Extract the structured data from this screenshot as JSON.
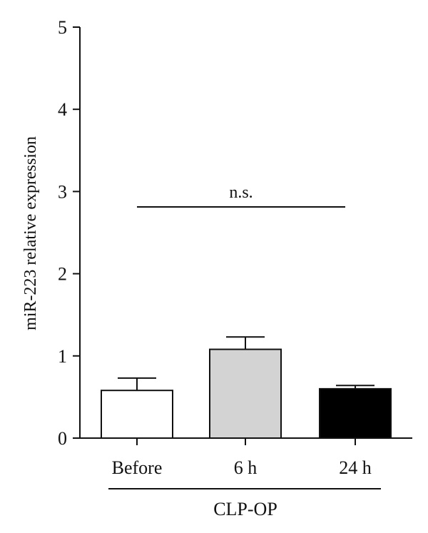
{
  "chart_data": {
    "type": "bar",
    "ylabel": "miR-223 relative expression",
    "ylim": [
      0,
      5
    ],
    "yticks": [
      0,
      1,
      2,
      3,
      4,
      5
    ],
    "categories": [
      "Before",
      "6 h",
      "24 h"
    ],
    "values": [
      0.58,
      1.08,
      0.6
    ],
    "errors": [
      0.15,
      0.15,
      0.04
    ],
    "bar_colors": [
      "#ffffff",
      "#d3d3d3",
      "#000000"
    ],
    "group_label": "CLP-OP",
    "significance": {
      "label": "n.s.",
      "from": 0,
      "to": 2
    },
    "grid": false,
    "legend": "none"
  }
}
